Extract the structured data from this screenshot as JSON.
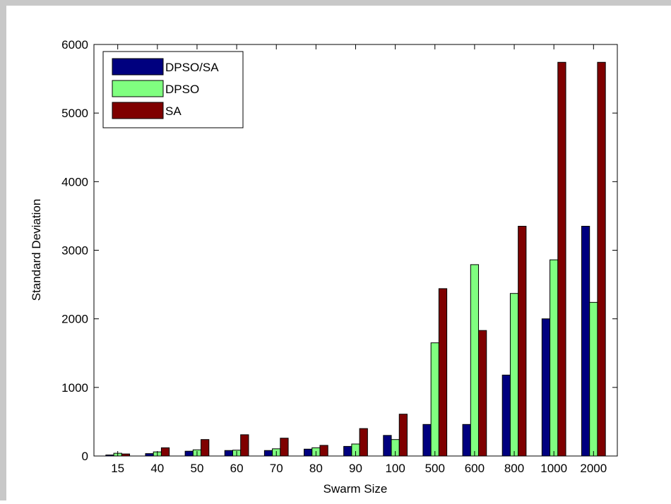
{
  "colors": {
    "figure_bg": "#c8c8c8",
    "axes_bg": "#ffffff",
    "outer_frame": "#ffffff",
    "axis_line": "#000000",
    "text": "#000000",
    "bar_edge": "#000000"
  },
  "chart_data": {
    "type": "bar",
    "title": "",
    "xlabel": "Swarm Size",
    "ylabel": "Standard Deviation",
    "categories": [
      "15",
      "40",
      "50",
      "60",
      "70",
      "80",
      "90",
      "100",
      "500",
      "600",
      "800",
      "1000",
      "2000"
    ],
    "ylim": [
      0,
      6000
    ],
    "yticks": [
      0,
      1000,
      2000,
      3000,
      4000,
      5000,
      6000
    ],
    "grid": false,
    "legend_position": "top-left",
    "series": [
      {
        "name": "DPSO/SA",
        "color": "#00007f",
        "values": [
          15,
          35,
          70,
          80,
          80,
          100,
          140,
          300,
          460,
          460,
          1180,
          2000,
          3350
        ]
      },
      {
        "name": "DPSO",
        "color": "#80ff80",
        "values": [
          40,
          60,
          90,
          85,
          105,
          120,
          175,
          240,
          1650,
          2790,
          2370,
          2860,
          2240
        ]
      },
      {
        "name": "SA",
        "color": "#7f0000",
        "values": [
          30,
          120,
          240,
          310,
          260,
          155,
          400,
          610,
          2440,
          1830,
          3350,
          5740,
          5740
        ]
      }
    ]
  }
}
